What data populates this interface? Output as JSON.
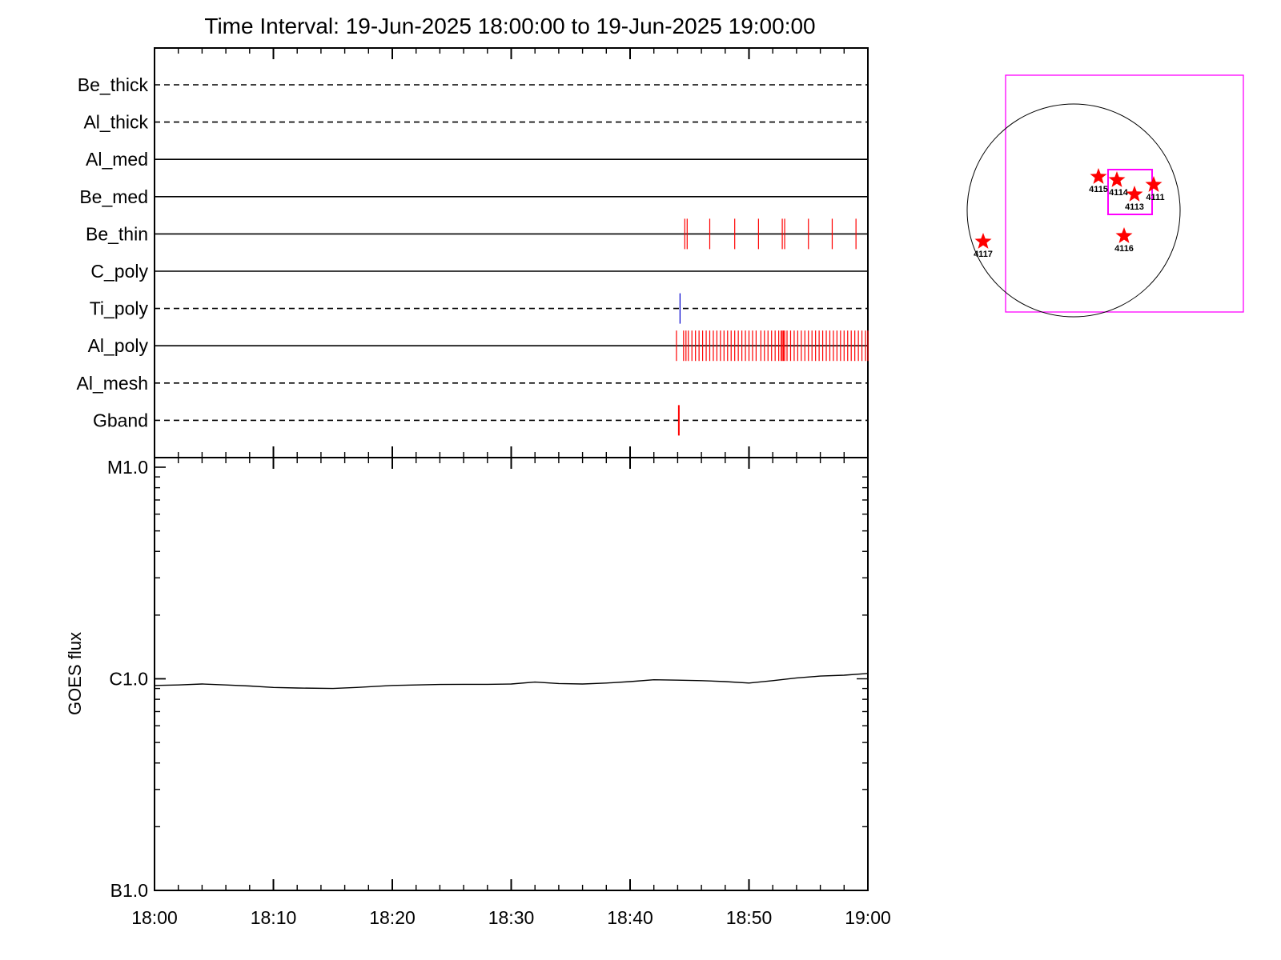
{
  "title": "Time Interval: 19-Jun-2025 18:00:00 to 19-Jun-2025 19:00:00",
  "colors": {
    "event_red": "#ff0000",
    "event_blue": "#0000cc",
    "fov_magenta": "#ff00ff",
    "axis": "#000000"
  },
  "chart_data": [
    {
      "type": "scatter",
      "description_free": true,
      "xlim": [
        "18:00",
        "19:00"
      ],
      "filters": [
        {
          "name": "Be_thick",
          "style": "dashed"
        },
        {
          "name": "Al_thick",
          "style": "dashed"
        },
        {
          "name": "Al_med",
          "style": "solid"
        },
        {
          "name": "Be_med",
          "style": "solid"
        },
        {
          "name": "Be_thin",
          "style": "solid"
        },
        {
          "name": "C_poly",
          "style": "solid"
        },
        {
          "name": "Ti_poly",
          "style": "dashed"
        },
        {
          "name": "Al_poly",
          "style": "solid"
        },
        {
          "name": "Al_mesh",
          "style": "dashed"
        },
        {
          "name": "Gband",
          "style": "dashed"
        }
      ],
      "events": {
        "Be_thin": {
          "color": "red",
          "minutes": [
            44.6,
            44.8,
            46.7,
            48.8,
            50.8,
            52.8,
            53.0,
            55.0,
            57.0,
            59.0
          ]
        },
        "Ti_poly": {
          "color": "blue",
          "minutes": [
            44.2
          ]
        },
        "Al_poly": {
          "color": "red",
          "minutes": [
            43.9,
            44.5,
            44.7,
            44.9,
            45.2,
            45.5,
            45.8,
            46.1,
            46.4,
            46.7,
            47.0,
            47.3,
            47.6,
            47.9,
            48.2,
            48.5,
            48.8,
            49.1,
            49.4,
            49.7,
            50.0,
            50.3,
            50.6,
            51.0,
            51.3,
            51.6,
            51.9,
            52.2,
            52.5,
            52.7,
            52.8,
            52.9,
            53.0,
            53.2,
            53.5,
            53.8,
            54.1,
            54.4,
            54.7,
            55.0,
            55.3,
            55.6,
            55.9,
            56.2,
            56.5,
            56.8,
            57.1,
            57.4,
            57.7,
            58.0,
            58.3,
            58.6,
            58.9,
            59.2,
            59.5,
            59.8,
            60.0
          ]
        },
        "Gband": {
          "color": "red",
          "minutes": [
            44.1
          ]
        }
      }
    },
    {
      "type": "line",
      "ylabel": "GOES flux",
      "yscale": "log",
      "yticks": [
        "M1.0",
        "C1.0",
        "B1.0"
      ],
      "xticks": [
        "18:00",
        "18:10",
        "18:20",
        "18:30",
        "18:40",
        "18:50",
        "19:00"
      ],
      "x": [
        "18:00",
        "18:02",
        "18:04",
        "18:06",
        "18:08",
        "18:10",
        "18:12",
        "18:15",
        "18:17",
        "18:20",
        "18:22",
        "18:24",
        "18:26",
        "18:28",
        "18:30",
        "18:32",
        "18:34",
        "18:36",
        "18:38",
        "18:40",
        "18:42",
        "18:44",
        "18:46",
        "18:48",
        "18:50",
        "18:52",
        "18:54",
        "18:56",
        "18:58",
        "19:00"
      ],
      "values": [
        9.3e-07,
        9.35e-07,
        9.45e-07,
        9.35e-07,
        9.25e-07,
        9.1e-07,
        9.05e-07,
        9e-07,
        9.1e-07,
        9.3e-07,
        9.35e-07,
        9.4e-07,
        9.42e-07,
        9.42e-07,
        9.45e-07,
        9.65e-07,
        9.5e-07,
        9.45e-07,
        9.55e-07,
        9.7e-07,
        9.9e-07,
        9.85e-07,
        9.8e-07,
        9.7e-07,
        9.55e-07,
        9.8e-07,
        1.01e-06,
        1.03e-06,
        1.04e-06,
        1.06e-06
      ]
    }
  ],
  "sun_map": {
    "regions": [
      {
        "id": "4115",
        "label": "4115"
      },
      {
        "id": "4114",
        "label": "4114"
      },
      {
        "id": "4113",
        "label": "4113"
      },
      {
        "id": "4111",
        "label": "4111"
      },
      {
        "id": "4116",
        "label": "4116"
      },
      {
        "id": "4117",
        "label": "4117"
      }
    ]
  }
}
